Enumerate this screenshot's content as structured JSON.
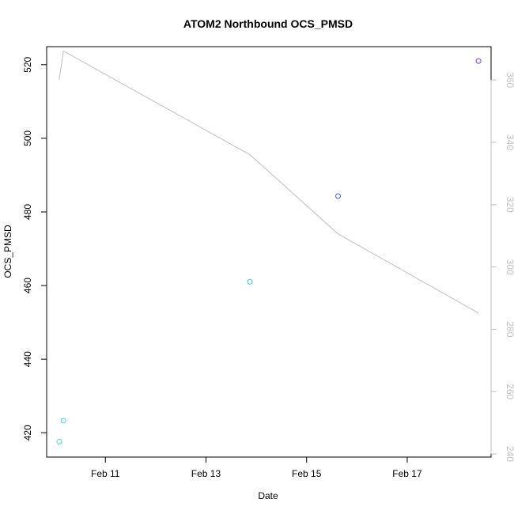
{
  "chart_data": {
    "type": "scatter",
    "title": "ATOM2 Northbound OCS_PMSD",
    "xlabel": "Date",
    "ylabel": "OCS_PMSD",
    "x_ticks": [
      "Feb 11",
      "Feb 13",
      "Feb 15",
      "Feb 17"
    ],
    "y_ticks": [
      420,
      440,
      460,
      480,
      500,
      520
    ],
    "y2_ticks": [
      240,
      260,
      280,
      300,
      320,
      340,
      360
    ],
    "ylim": [
      413.4,
      524.9
    ],
    "y2lim": [
      239.0,
      370.7
    ],
    "series": [
      {
        "kind": "points",
        "axis": "left",
        "points": [
          {
            "x": "2025-02-10 02:00",
            "y": 417.6,
            "color": "#33e6b3"
          },
          {
            "x": "2025-02-10 04:00",
            "y": 423.3,
            "color": "#33e6c8"
          },
          {
            "x": "2025-02-13 21:00",
            "y": 461.0,
            "color": "#33c8e6"
          },
          {
            "x": "2025-02-15 15:00",
            "y": 484.3,
            "color": "#3366ff"
          },
          {
            "x": "2025-02-18 10:00",
            "y": 521.0,
            "color": "#6633ff"
          }
        ]
      },
      {
        "kind": "line",
        "axis": "right",
        "color": "#bfbfbf",
        "points": [
          {
            "x": "2025-02-10 02:00",
            "y": 360.1
          },
          {
            "x": "2025-02-10 04:00",
            "y": 369.3
          },
          {
            "x": "2025-02-13 21:00",
            "y": 336.0
          },
          {
            "x": "2025-02-15 15:00",
            "y": 310.6
          },
          {
            "x": "2025-02-18 10:00",
            "y": 285.2
          }
        ]
      }
    ],
    "x_range": [
      "2025-02-09 20:00",
      "2025-02-18 16:00"
    ],
    "x_tick_dates": [
      "2025-02-11",
      "2025-02-13",
      "2025-02-15",
      "2025-02-17"
    ],
    "grid": false
  }
}
